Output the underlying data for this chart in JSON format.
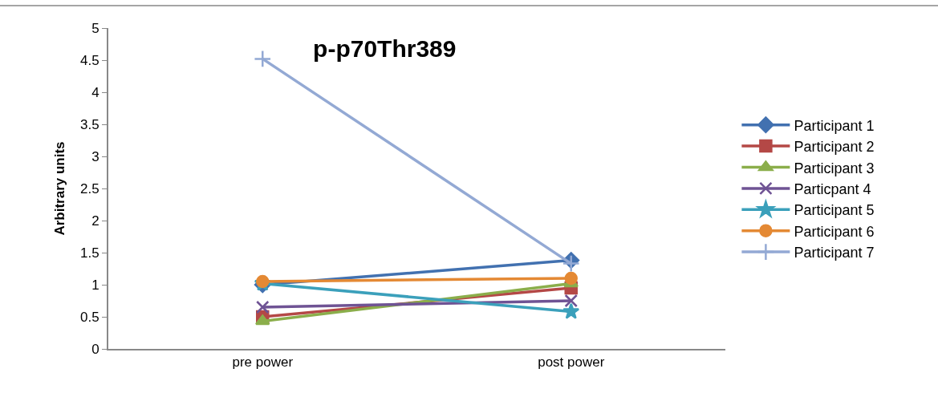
{
  "chart_data": {
    "type": "line",
    "title": "p-p70Thr389",
    "ylabel": "Arbitrary units",
    "categories": [
      "pre power",
      "post power"
    ],
    "series": [
      {
        "name": "Participant 1",
        "color": "#4271b0",
        "marker": "diamond",
        "values": [
          1.0,
          1.38
        ]
      },
      {
        "name": "Participant 2",
        "color": "#b44846",
        "marker": "square",
        "values": [
          0.5,
          0.95
        ]
      },
      {
        "name": "Participant 3",
        "color": "#8bae4b",
        "marker": "triangle",
        "values": [
          0.43,
          1.02
        ]
      },
      {
        "name": "Particpant 4",
        "color": "#6f5394",
        "marker": "cross",
        "values": [
          0.65,
          0.75
        ]
      },
      {
        "name": "Participant 5",
        "color": "#3ba0bb",
        "marker": "star",
        "values": [
          1.02,
          0.58
        ]
      },
      {
        "name": "Participant 6",
        "color": "#e48934",
        "marker": "circle",
        "values": [
          1.05,
          1.1
        ]
      },
      {
        "name": "Participant 7",
        "color": "#93a9d4",
        "marker": "cross",
        "values": [
          4.52,
          1.33
        ]
      }
    ],
    "ylim": [
      0,
      5
    ],
    "yticks": [
      0,
      0.5,
      1,
      1.5,
      2,
      2.5,
      3,
      3.5,
      4,
      4.5,
      5
    ],
    "legend": "right"
  }
}
